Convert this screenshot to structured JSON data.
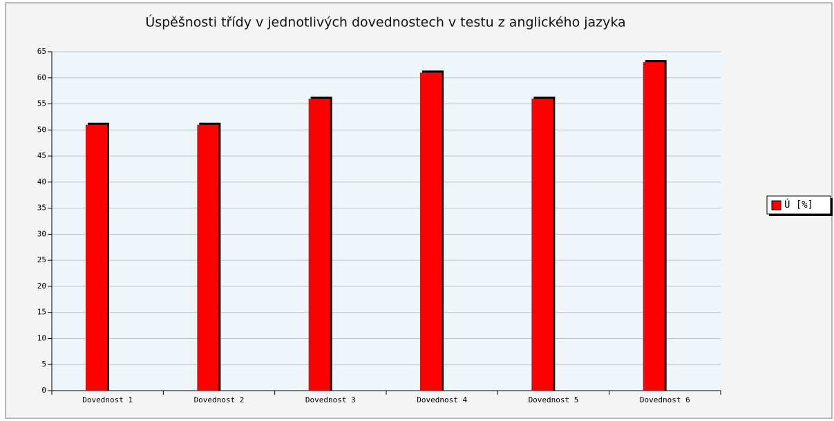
{
  "chart_data": {
    "type": "bar",
    "title": "Úspěšnosti třídy v jednotlivých dovednostech v testu z anglického jazyka",
    "categories": [
      "Dovednost 1",
      "Dovednost 2",
      "Dovednost 3",
      "Dovednost 4",
      "Dovednost 5",
      "Dovednost 6"
    ],
    "series": [
      {
        "name": "Ú [%]",
        "color": "#ff0000",
        "values": [
          51,
          51,
          56,
          61,
          56,
          63
        ]
      }
    ],
    "ylim": [
      0,
      65
    ],
    "yticks": [
      0,
      5,
      10,
      15,
      20,
      25,
      30,
      35,
      40,
      45,
      50,
      55,
      60,
      65
    ],
    "grid": true,
    "legend": "right"
  }
}
